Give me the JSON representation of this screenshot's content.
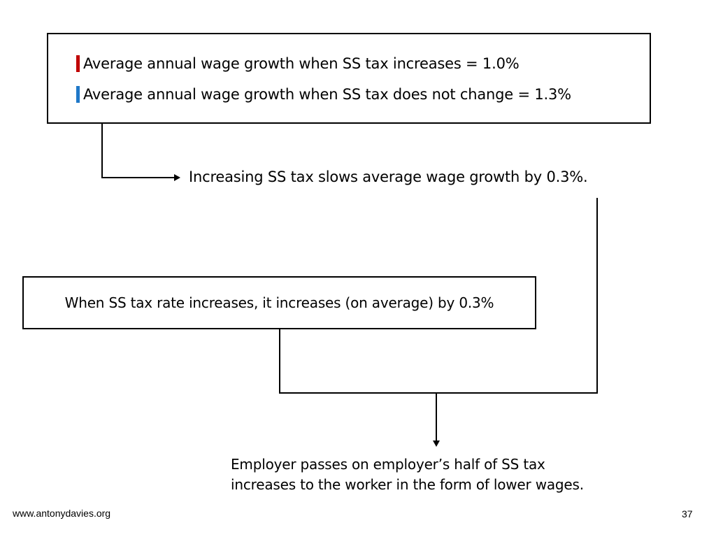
{
  "legend": {
    "increase": {
      "text": "Average annual wage growth when SS tax increases = 1.0%",
      "color": "#c00000"
    },
    "no_change": {
      "text": "Average annual wage growth when SS tax does not change = 1.3%",
      "color": "#1f78c8"
    }
  },
  "conclusion_slowdown": "Increasing SS tax slows average wage growth by 0.3%.",
  "rate_increase_box": "When SS tax rate increases, it increases (on average) by 0.3%",
  "final_conclusion": {
    "line1": "Employer passes on employer’s half of SS tax",
    "line2": "increases to the worker in the form of lower wages."
  },
  "footer": {
    "url": "www.antonydavies.org",
    "page_number": "37"
  }
}
